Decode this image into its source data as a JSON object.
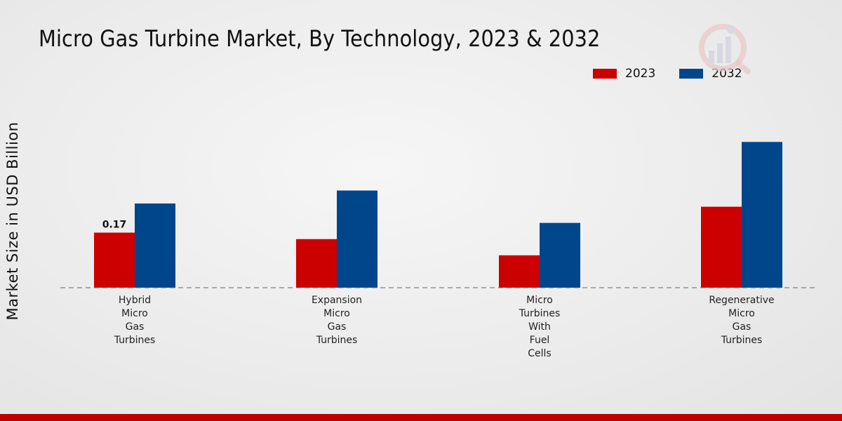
{
  "chart_data": {
    "type": "bar",
    "title": "Micro Gas Turbine Market, By Technology, 2023 & 2032",
    "ylabel": "Market Size in USD Billion",
    "xlabel": "",
    "categories": [
      [
        "Hybrid",
        "Micro",
        "Gas",
        "Turbines"
      ],
      [
        "Expansion",
        "Micro",
        "Gas",
        "Turbines"
      ],
      [
        "Micro",
        "Turbines",
        "With",
        "Fuel",
        "Cells"
      ],
      [
        "Regenerative",
        "Micro",
        "Gas",
        "Turbines"
      ]
    ],
    "series": [
      {
        "name": "2023",
        "color": "#cc0000",
        "values": [
          0.17,
          0.15,
          0.1,
          0.25
        ]
      },
      {
        "name": "2032",
        "color": "#00468b",
        "values": [
          0.26,
          0.3,
          0.2,
          0.45
        ]
      }
    ],
    "data_labels": [
      {
        "series": 0,
        "index": 0,
        "text": "0.17"
      }
    ],
    "ylim": [
      0,
      0.65
    ],
    "legend_position": "top-right",
    "grid": false
  }
}
